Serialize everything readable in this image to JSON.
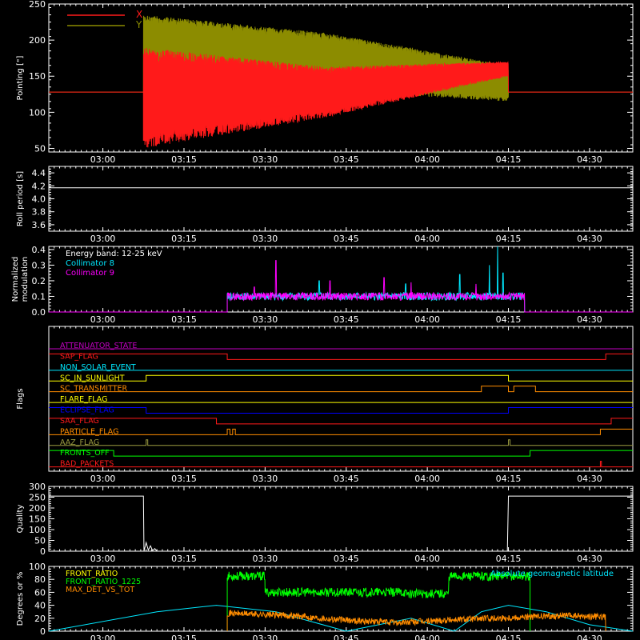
{
  "time_axis": {
    "tick_labels": [
      "03:00",
      "03:15",
      "03:30",
      "03:45",
      "04:00",
      "04:15",
      "04:30"
    ],
    "tick_minutes": [
      180,
      195,
      210,
      225,
      240,
      255,
      270
    ],
    "range_minutes": [
      170.0,
      278.0
    ]
  },
  "colors": {
    "background": "#000000",
    "frame": "#ffffff",
    "red": "#ff1a1a",
    "olive": "#8c8c00",
    "cyan": "#00e8ff",
    "magenta": "#ff00ff",
    "green": "#00ff00",
    "orange": "#ff8c00",
    "white": "#ffffff",
    "blue": "#0000ff",
    "purple": "#c000c0",
    "yellow": "#ffff00",
    "oliveflag": "#9c9c40"
  },
  "chart_data": [
    {
      "id": "pointing",
      "type": "line",
      "ylabel": "Pointing [\"]",
      "ylim": [
        45,
        250
      ],
      "yticks": [
        50,
        100,
        150,
        200,
        250
      ],
      "legend_position": "top-left",
      "series": [
        {
          "name": "X",
          "color": "#ff1a1a",
          "baseline": {
            "range": [
              170,
              278
            ],
            "value": 128
          },
          "oscillation": {
            "range": [
              187.5,
              255
            ],
            "center": [
              120,
              128,
              160
            ],
            "amplitude": [
              70,
              35,
              10
            ],
            "period_min": 0.35
          }
        },
        {
          "name": "Y",
          "color": "#8c8c00",
          "baseline": {
            "range": [
              170,
              278
            ],
            "value": 128
          },
          "oscillation": {
            "range": [
              187.5,
              255
            ],
            "center": [
              195,
              170,
              140
            ],
            "amplitude": [
              40,
              40,
              25
            ],
            "period_min": 0.35
          }
        }
      ]
    },
    {
      "id": "roll",
      "type": "line",
      "ylabel": "Roll period [s]",
      "ylim": [
        3.5,
        4.5
      ],
      "yticks": [
        3.6,
        3.8,
        4.0,
        4.2,
        4.4
      ],
      "series": [
        {
          "name": "",
          "color": "#ffffff",
          "x": [
            170,
            278
          ],
          "y": [
            4.17,
            4.17
          ]
        }
      ]
    },
    {
      "id": "modulation",
      "type": "line",
      "ylabel": "Normalized modulation",
      "ylim": [
        0,
        0.42
      ],
      "yticks": [
        0.0,
        0.1,
        0.2,
        0.3,
        0.4
      ],
      "annotation": "Energy band: 12-25 keV",
      "active_range": [
        203,
        258
      ],
      "series": [
        {
          "name": "Collimator 8",
          "color": "#00e8ff",
          "typical": 0.1,
          "spikes": [
            [
              220,
              0.2
            ],
            [
              236,
              0.18
            ],
            [
              246,
              0.24
            ],
            [
              251.5,
              0.3
            ],
            [
              253,
              0.42
            ],
            [
              254,
              0.25
            ]
          ]
        },
        {
          "name": "Collimator 9",
          "color": "#ff00ff",
          "typical": 0.1,
          "spikes": [
            [
              208,
              0.16
            ],
            [
              212,
              0.33
            ],
            [
              222,
              0.2
            ],
            [
              232,
              0.22
            ],
            [
              237,
              0.19
            ],
            [
              249,
              0.18
            ]
          ]
        }
      ]
    },
    {
      "id": "flags",
      "type": "line",
      "ylabel": "Flags",
      "series": [
        {
          "name": "ATTENUATOR_STATE",
          "color": "#c000c0",
          "levels": [
            [
              170,
              278,
              0
            ]
          ]
        },
        {
          "name": "SAP_FLAG",
          "color": "#ff1a1a",
          "levels": [
            [
              170,
              203,
              1
            ],
            [
              203,
              273,
              0
            ],
            [
              273,
              278,
              1
            ]
          ]
        },
        {
          "name": "NON_SOLAR_EVENT",
          "color": "#00e8ff",
          "levels": [
            [
              170,
              278,
              0
            ]
          ]
        },
        {
          "name": "SC_IN_SUNLIGHT",
          "color": "#ffff00",
          "levels": [
            [
              170,
              188,
              0
            ],
            [
              188,
              255,
              1
            ],
            [
              255,
              278,
              0
            ]
          ]
        },
        {
          "name": "SC_TRANSMITTER",
          "color": "#ff8c00",
          "levels": [
            [
              170,
              250,
              0
            ],
            [
              250,
              255,
              1
            ],
            [
              255,
              256,
              0
            ],
            [
              256,
              260,
              1
            ],
            [
              260,
              278,
              0
            ]
          ]
        },
        {
          "name": "FLARE_FLAG",
          "color": "#ffff00",
          "levels": [
            [
              170,
              278,
              0
            ]
          ]
        },
        {
          "name": "ECLIPSE_FLAG",
          "color": "#0000ff",
          "levels": [
            [
              170,
              188,
              1
            ],
            [
              188,
              255,
              0
            ],
            [
              255,
              278,
              1
            ]
          ]
        },
        {
          "name": "SAA_FLAG",
          "color": "#ff1a1a",
          "levels": [
            [
              170,
              201,
              1
            ],
            [
              201,
              274,
              0
            ],
            [
              274,
              278,
              1
            ]
          ]
        },
        {
          "name": "PARTICLE_FLAG",
          "color": "#ff8c00",
          "levels": [
            [
              170,
              203,
              0
            ],
            [
              203,
              203.5,
              1
            ],
            [
              203.5,
              204,
              0
            ],
            [
              204,
              204.5,
              1
            ],
            [
              204.5,
              272,
              0
            ],
            [
              272,
              278,
              1
            ]
          ]
        },
        {
          "name": "AAZ_FLAG",
          "color": "#9c9c40",
          "levels": [
            [
              170,
              188,
              0
            ],
            [
              188,
              188.3,
              1
            ],
            [
              188.3,
              255,
              0
            ],
            [
              255,
              255.3,
              1
            ],
            [
              255.3,
              278,
              0
            ]
          ]
        },
        {
          "name": "FRONTS_OFF",
          "color": "#00ff00",
          "levels": [
            [
              170,
              182,
              1
            ],
            [
              182,
              259,
              0
            ],
            [
              259,
              278,
              1
            ]
          ]
        },
        {
          "name": "BAD_PACKETS",
          "color": "#ff1a1a",
          "levels": [
            [
              170,
              272,
              0
            ],
            [
              272,
              272.2,
              1
            ],
            [
              272.2,
              278,
              0
            ]
          ]
        }
      ]
    },
    {
      "id": "quality",
      "type": "line",
      "ylabel": "Quality",
      "ylim": [
        0,
        300
      ],
      "yticks": [
        0,
        50,
        100,
        150,
        200,
        250,
        300
      ],
      "series": [
        {
          "name": "",
          "color": "#ffffff",
          "x": [
            170,
            187.5,
            187.6,
            188,
            188.4,
            188.8,
            189.2,
            189.6,
            190,
            254.8,
            255,
            278
          ],
          "y": [
            255,
            255,
            0,
            40,
            5,
            25,
            3,
            12,
            0,
            0,
            255,
            255
          ]
        }
      ]
    },
    {
      "id": "ratios",
      "type": "line",
      "ylabel": "Degrees or %",
      "ylim": [
        0,
        100
      ],
      "yticks": [
        0,
        20,
        40,
        60,
        80,
        100
      ],
      "series": [
        {
          "name": "FRONT_RATIO",
          "color": "#ffff00",
          "x": [],
          "y": []
        },
        {
          "name": "FRONT_RATIO_1225",
          "color": "#00ff00",
          "active_range": [
            203,
            259
          ],
          "segments": [
            [
              203,
              210,
              85
            ],
            [
              210,
              235,
              60
            ],
            [
              235,
              236,
              60
            ],
            [
              236,
              244,
              58
            ],
            [
              244,
              253,
              85
            ],
            [
              253,
              259,
              85
            ]
          ]
        },
        {
          "name": "MAX_DET_VS_TOT",
          "color": "#ff8c00",
          "active_range": [
            203,
            273
          ],
          "x": [
            203,
            215,
            225,
            235,
            245,
            259,
            265,
            273
          ],
          "y": [
            28,
            24,
            17,
            13,
            18,
            22,
            24,
            22
          ]
        },
        {
          "name": "Absolute geomagnetic latitude",
          "color": "#00e8ff",
          "x": [
            170,
            190,
            201,
            212,
            225,
            237,
            245,
            250,
            255,
            262,
            270,
            278
          ],
          "y": [
            0,
            30,
            40,
            30,
            0,
            20,
            0,
            30,
            40,
            30,
            10,
            0
          ]
        }
      ]
    }
  ]
}
